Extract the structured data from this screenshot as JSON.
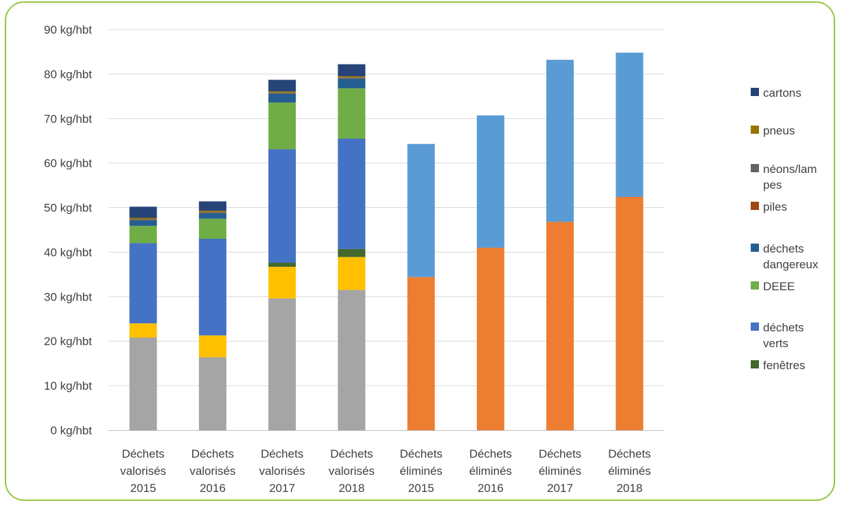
{
  "chart_data": {
    "type": "bar",
    "stacked": true,
    "categories": [
      [
        "Déchets",
        "valorisés",
        "2015"
      ],
      [
        "Déchets",
        "valorisés",
        "2016"
      ],
      [
        "Déchets",
        "valorisés",
        "2017"
      ],
      [
        "Déchets",
        "valorisés",
        "2018"
      ],
      [
        "Déchets",
        "éliminés",
        "2015"
      ],
      [
        "Déchets",
        "éliminés",
        "2016"
      ],
      [
        "Déchets",
        "éliminés",
        "2017"
      ],
      [
        "Déchets",
        "éliminés",
        "2018"
      ]
    ],
    "ylim": [
      0,
      90
    ],
    "ytick_labels": [
      "0  kg/hbt",
      "10  kg/hbt",
      "20  kg/hbt",
      "30  kg/hbt",
      "40  kg/hbt",
      "50  kg/hbt",
      "60  kg/hbt",
      "70  kg/hbt",
      "80  kg/hbt",
      "90  kg/hbt"
    ],
    "grid": true,
    "legend_position": "right",
    "series": [
      {
        "color": "#a5a5a5",
        "values": [
          20.8,
          16.4,
          29.6,
          31.5,
          0,
          0,
          0,
          0
        ]
      },
      {
        "color": "#ffc000",
        "values": [
          3.2,
          4.9,
          7.1,
          7.4,
          0,
          0,
          0,
          0
        ]
      },
      {
        "name": "fenêtres",
        "color": "#43682b",
        "values": [
          0,
          0,
          0.9,
          1.8,
          0,
          0,
          0,
          0
        ]
      },
      {
        "name": "déchets verts",
        "color": "#4472c4",
        "values": [
          18.0,
          21.7,
          25.5,
          24.8,
          0,
          0,
          0,
          0
        ]
      },
      {
        "name": "DEEE",
        "color": "#70ad47",
        "values": [
          3.9,
          4.5,
          10.5,
          11.3,
          0,
          0,
          0,
          0
        ]
      },
      {
        "name": "déchets dangereux",
        "color": "#255e91",
        "values": [
          1.3,
          1.3,
          2.0,
          2.2,
          0,
          0,
          0,
          0
        ]
      },
      {
        "name": "piles",
        "color": "#9e480e",
        "values": [
          0.1,
          0.1,
          0.1,
          0.1,
          0,
          0,
          0,
          0
        ]
      },
      {
        "name": "néons/lampes",
        "color": "#636363",
        "values": [
          0.1,
          0.1,
          0.1,
          0.1,
          0,
          0,
          0,
          0
        ]
      },
      {
        "name": "pneus",
        "color": "#997300",
        "values": [
          0.3,
          0.3,
          0.3,
          0.3,
          0,
          0,
          0,
          0
        ]
      },
      {
        "name": "cartons",
        "color": "#264478",
        "values": [
          2.5,
          2.1,
          2.6,
          2.7,
          0,
          0,
          0,
          0
        ]
      },
      {
        "color": "#ed7d31",
        "values": [
          0,
          0,
          0,
          0,
          34.4,
          41.0,
          46.8,
          52.4
        ]
      },
      {
        "color": "#5b9bd5",
        "values": [
          0,
          0,
          0,
          0,
          29.9,
          29.7,
          36.4,
          32.4
        ]
      }
    ],
    "legend": [
      {
        "lines": [
          "cartons"
        ],
        "color": "#264478"
      },
      {
        "lines": [
          "pneus"
        ],
        "color": "#997300"
      },
      {
        "lines": [
          "néons/lam",
          "pes"
        ],
        "color": "#636363"
      },
      {
        "lines": [
          "piles"
        ],
        "color": "#9e480e"
      },
      {
        "lines": [
          "déchets",
          "dangereux"
        ],
        "color": "#255e91"
      },
      {
        "lines": [
          "DEEE"
        ],
        "color": "#70ad47"
      },
      {
        "lines": [
          "déchets",
          "verts"
        ],
        "color": "#4472c4"
      },
      {
        "lines": [
          "fenêtres"
        ],
        "color": "#43682b"
      }
    ]
  }
}
